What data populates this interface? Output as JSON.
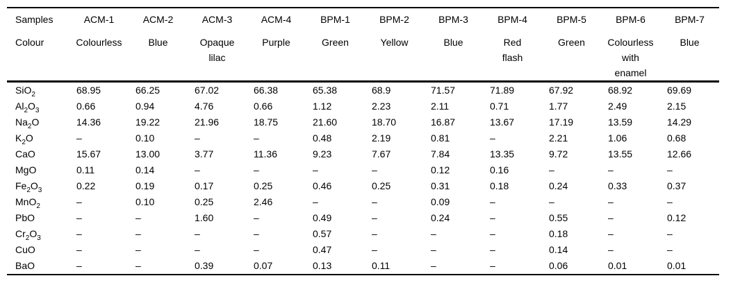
{
  "colors": {
    "background": "#ffffff",
    "text": "#000000",
    "rule": "#000000"
  },
  "table": {
    "header": {
      "samples_label": "Samples",
      "colour_label": "Colour",
      "columns": [
        {
          "id": "ACM-1",
          "colour": "Colourless"
        },
        {
          "id": "ACM-2",
          "colour": "Blue"
        },
        {
          "id": "ACM-3",
          "colour": "Opaque\nlilac"
        },
        {
          "id": "ACM-4",
          "colour": "Purple"
        },
        {
          "id": "BPM-1",
          "colour": "Green"
        },
        {
          "id": "BPM-2",
          "colour": "Yellow"
        },
        {
          "id": "BPM-3",
          "colour": "Blue"
        },
        {
          "id": "BPM-4",
          "colour": "Red\nflash"
        },
        {
          "id": "BPM-5",
          "colour": "Green"
        },
        {
          "id": "BPM-6",
          "colour": "Colourless\nwith\nenamel"
        },
        {
          "id": "BPM-7",
          "colour": "Blue"
        }
      ]
    },
    "rows": [
      {
        "oxide": "SiO_2",
        "values": [
          "68.95",
          "66.25",
          "67.02",
          "66.38",
          "65.38",
          "68.9",
          "71.57",
          "71.89",
          "67.92",
          "68.92",
          "69.69"
        ]
      },
      {
        "oxide": "Al_2O_3",
        "values": [
          "0.66",
          "0.94",
          "4.76",
          "0.66",
          "1.12",
          "2.23",
          "2.11",
          "0.71",
          "1.77",
          "2.49",
          "2.15"
        ]
      },
      {
        "oxide": "Na_2O",
        "values": [
          "14.36",
          "19.22",
          "21.96",
          "18.75",
          "21.60",
          "18.70",
          "16.87",
          "13.67",
          "17.19",
          "13.59",
          "14.29"
        ]
      },
      {
        "oxide": "K_2O",
        "values": [
          "–",
          "0.10",
          "–",
          "–",
          "0.48",
          "2.19",
          "0.81",
          "–",
          "2.21",
          "1.06",
          "0.68"
        ]
      },
      {
        "oxide": "CaO",
        "values": [
          "15.67",
          "13.00",
          "3.77",
          "11.36",
          "9.23",
          "7.67",
          "7.84",
          "13.35",
          "9.72",
          "13.55",
          "12.66"
        ]
      },
      {
        "oxide": "MgO",
        "values": [
          "0.11",
          "0.14",
          "–",
          "–",
          "–",
          "–",
          "0.12",
          "0.16",
          "–",
          "–",
          "–"
        ]
      },
      {
        "oxide": "Fe_2O_3",
        "values": [
          "0.22",
          "0.19",
          "0.17",
          "0.25",
          "0.46",
          "0.25",
          "0.31",
          "0.18",
          "0.24",
          "0.33",
          "0.37"
        ]
      },
      {
        "oxide": "MnO_2",
        "values": [
          "–",
          "0.10",
          "0.25",
          "2.46",
          "–",
          "–",
          "0.09",
          "–",
          "–",
          "–",
          "–"
        ]
      },
      {
        "oxide": "PbO",
        "values": [
          "–",
          "–",
          "1.60",
          "–",
          "0.49",
          "–",
          "0.24",
          "–",
          "0.55",
          "–",
          "0.12"
        ]
      },
      {
        "oxide": "Cr_2O_3",
        "values": [
          "–",
          "–",
          "–",
          "–",
          "0.57",
          "–",
          "–",
          "–",
          "0.18",
          "–",
          "–"
        ]
      },
      {
        "oxide": "CuO",
        "values": [
          "–",
          "–",
          "–",
          "–",
          "0.47",
          "–",
          "–",
          "–",
          "0.14",
          "–",
          "–"
        ]
      },
      {
        "oxide": "BaO",
        "values": [
          "–",
          "–",
          "0.39",
          "0.07",
          "0.13",
          "0.11",
          "–",
          "–",
          "0.06",
          "0.01",
          "0.01"
        ]
      }
    ]
  }
}
